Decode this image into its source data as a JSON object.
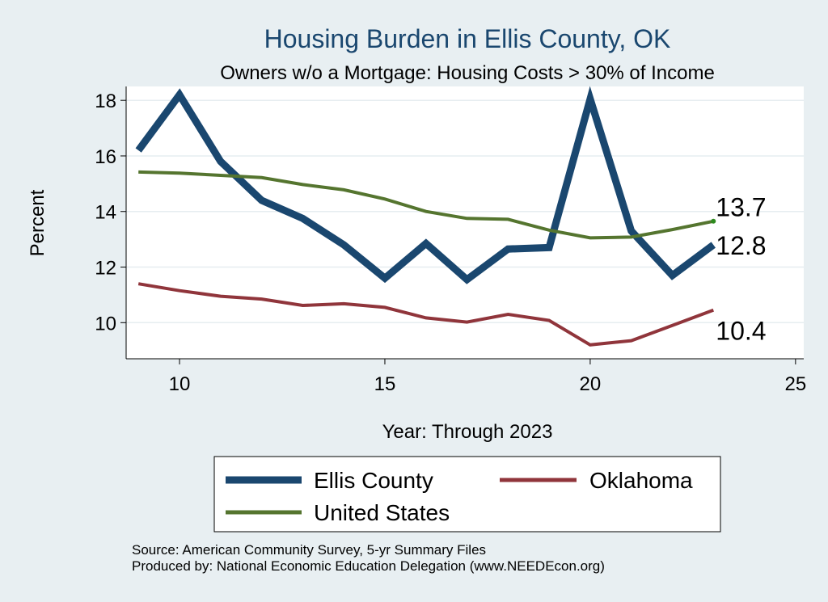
{
  "chart_data": {
    "type": "line",
    "title": "Housing Burden in Ellis County, OK",
    "subtitle": "Owners w/o a Mortgage: Housing Costs > 30% of Income",
    "xlabel": "Year: Through 2023",
    "ylabel": "Percent",
    "xlim": [
      8.7,
      25.2
    ],
    "ylim": [
      8.7,
      18.5
    ],
    "xticks": [
      10,
      15,
      20,
      25
    ],
    "yticks": [
      10,
      12,
      14,
      16,
      18
    ],
    "grid": true,
    "legend_position": "bottom",
    "x": [
      9,
      10,
      11,
      12,
      13,
      14,
      15,
      16,
      17,
      18,
      19,
      20,
      21,
      22,
      23
    ],
    "series": [
      {
        "name": "Ellis County",
        "color": "#1a476f",
        "values": [
          16.2,
          18.2,
          15.8,
          14.4,
          13.75,
          12.8,
          11.6,
          12.85,
          11.55,
          12.65,
          12.7,
          18.05,
          13.3,
          11.7,
          12.8
        ],
        "end_label": "12.8"
      },
      {
        "name": "Oklahoma",
        "color": "#90353b",
        "values": [
          11.4,
          11.15,
          10.95,
          10.85,
          10.62,
          10.68,
          10.55,
          10.17,
          10.02,
          10.3,
          10.08,
          9.2,
          9.35,
          9.9,
          10.45
        ],
        "end_label": "10.4"
      },
      {
        "name": "United States",
        "color": "#55752f",
        "values": [
          15.42,
          15.38,
          15.3,
          15.22,
          14.97,
          14.78,
          14.45,
          14.0,
          13.75,
          13.72,
          13.33,
          13.05,
          13.08,
          13.35,
          13.65
        ],
        "end_label": "13.7"
      }
    ]
  },
  "source": {
    "line1": "Source: American Community Survey, 5-yr Summary Files",
    "line2": "Produced by: National Economic Education Delegation (www.NEEDEcon.org)"
  }
}
